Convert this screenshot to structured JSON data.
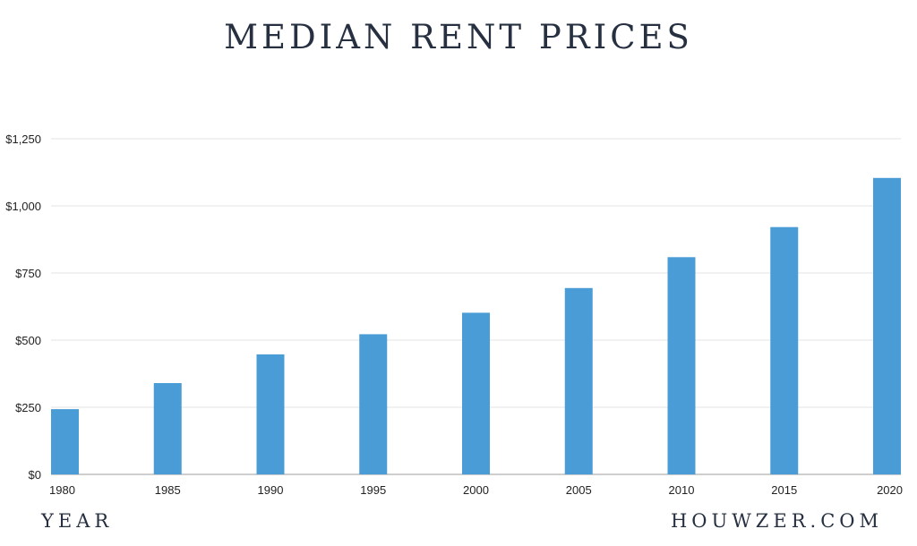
{
  "chart_data": {
    "type": "bar",
    "title": "MEDIAN RENT PRICES",
    "categories": [
      "1980",
      "1985",
      "1990",
      "1995",
      "2000",
      "2005",
      "2010",
      "2015",
      "2020"
    ],
    "values": [
      243,
      340,
      447,
      522,
      602,
      694,
      809,
      921,
      1104
    ],
    "ylim": [
      0,
      1250
    ],
    "yticks": [
      0,
      250,
      500,
      750,
      1000,
      1250
    ],
    "ytick_labels": [
      "$0",
      "$250",
      "$500",
      "$750",
      "$1,000",
      "$1,250"
    ],
    "xlabel": "YEAR",
    "ylabel": "",
    "grid": true,
    "bar_color": "#4a9cd6"
  },
  "footer": {
    "xlabel": "YEAR",
    "brand": "HOUWZER.COM"
  }
}
